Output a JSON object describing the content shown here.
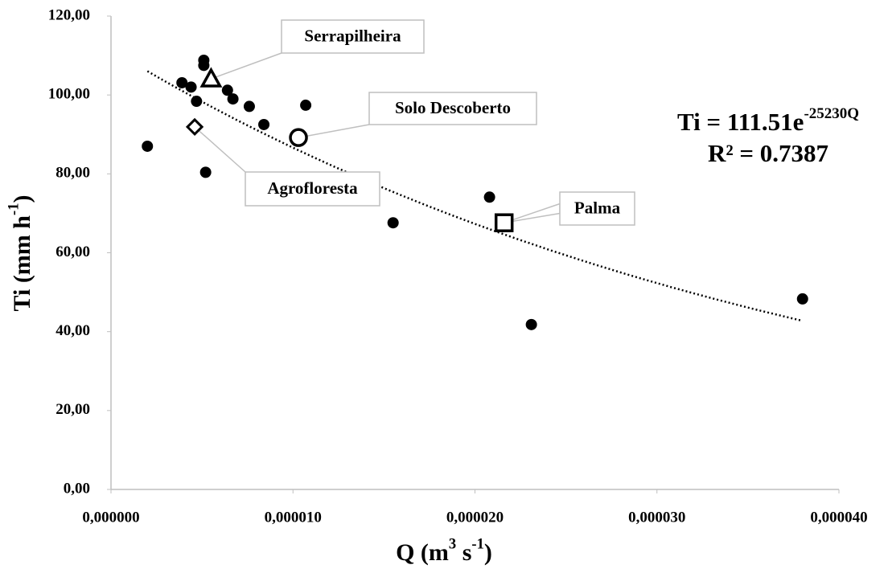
{
  "chart_data": {
    "type": "scatter",
    "xlim": [
      0,
      4e-05
    ],
    "ylim": [
      0,
      120
    ],
    "xticks": [
      {
        "value": 0,
        "label": "0,000000"
      },
      {
        "value": 1e-05,
        "label": "0,000010"
      },
      {
        "value": 2e-05,
        "label": "0,000020"
      },
      {
        "value": 3e-05,
        "label": "0,000030"
      },
      {
        "value": 4e-05,
        "label": "0,000040"
      }
    ],
    "yticks": [
      {
        "value": 0,
        "label": "0,00"
      },
      {
        "value": 20,
        "label": "20,00"
      },
      {
        "value": 40,
        "label": "40,00"
      },
      {
        "value": 60,
        "label": "60,00"
      },
      {
        "value": 80,
        "label": "80,00"
      },
      {
        "value": 100,
        "label": "100,00"
      },
      {
        "value": 120,
        "label": "120,00"
      }
    ],
    "xlabel": [
      {
        "text": "Q (m"
      },
      {
        "text": "3",
        "sup": true
      },
      {
        "text": " s"
      },
      {
        "text": "-1",
        "sup": true
      },
      {
        "text": ")"
      }
    ],
    "ylabel": [
      {
        "text": "Ti (mm h"
      },
      {
        "text": "-1",
        "sup": true
      },
      {
        "text": ")"
      }
    ],
    "points": {
      "color": "#000000",
      "x": [
        2e-06,
        3.9e-06,
        4.4e-06,
        5.1e-06,
        5.1e-06,
        4.7e-06,
        5.2e-06,
        6.4e-06,
        6.7e-06,
        7.6e-06,
        8.4e-06,
        1.07e-05,
        1.55e-05,
        2.08e-05,
        2.31e-05,
        3.8e-05
      ],
      "y": [
        87.0,
        103.1,
        102.0,
        108.8,
        107.5,
        98.4,
        80.4,
        101.2,
        99.0,
        97.1,
        92.5,
        97.4,
        67.6,
        74.1,
        41.8,
        48.3
      ]
    },
    "highlights": [
      {
        "label": "Serrapilheira",
        "marker": "triangle",
        "x": 5.5e-06,
        "y": 104.1
      },
      {
        "label": "Solo Descoberto",
        "marker": "circle",
        "x": 1.03e-05,
        "y": 89.2
      },
      {
        "label": "Agrofloresta",
        "marker": "diamond",
        "x": 4.6e-06,
        "y": 91.9
      },
      {
        "label": "Palma",
        "marker": "square",
        "x": 2.16e-05,
        "y": 67.6
      }
    ],
    "trendline": {
      "type": "exponential",
      "a": 111.51,
      "b": -25230
    },
    "equation": {
      "base": "Ti = 111.51e",
      "exponent": "-25230Q"
    },
    "r_squared": "R² = 0.7387"
  }
}
